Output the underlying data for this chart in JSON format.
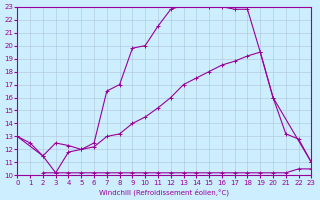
{
  "xlabel": "Windchill (Refroidissement éolien,°C)",
  "background_color": "#cceeff",
  "grid_color": "#b0c4d8",
  "line_color": "#990099",
  "xlim": [
    0,
    23
  ],
  "ylim": [
    10,
    23
  ],
  "xticks": [
    0,
    1,
    2,
    3,
    4,
    5,
    6,
    7,
    8,
    9,
    10,
    11,
    12,
    13,
    14,
    15,
    16,
    17,
    18,
    19,
    20,
    21,
    22,
    23
  ],
  "yticks": [
    10,
    11,
    12,
    13,
    14,
    15,
    16,
    17,
    18,
    19,
    20,
    21,
    22,
    23
  ],
  "series": [
    {
      "x": [
        0,
        1,
        2,
        3,
        4,
        5,
        6,
        7,
        8,
        9,
        10,
        11,
        12,
        13,
        14,
        15,
        16,
        17,
        18,
        19,
        20,
        23
      ],
      "y": [
        13,
        12.5,
        11.5,
        10.2,
        11.8,
        12.0,
        12.5,
        16.5,
        17.0,
        19.8,
        20.0,
        21.5,
        22.8,
        23.1,
        23.1,
        23.0,
        23.0,
        22.8,
        22.8,
        19.5,
        16.0,
        11.0
      ]
    },
    {
      "x": [
        0,
        2,
        3,
        4,
        5,
        6,
        7,
        8,
        9,
        10,
        11,
        12,
        13,
        14,
        15,
        16,
        17,
        18,
        19,
        20,
        21,
        22,
        23
      ],
      "y": [
        13,
        11.5,
        12.5,
        12.3,
        12.0,
        12.2,
        13.0,
        13.2,
        14.0,
        14.5,
        15.2,
        16.0,
        17.0,
        17.5,
        18.0,
        18.5,
        18.8,
        19.2,
        19.5,
        16.0,
        13.2,
        12.8,
        11.0
      ]
    },
    {
      "x": [
        2,
        3,
        4,
        5,
        6,
        7,
        8,
        9,
        10,
        11,
        12,
        13,
        14,
        15,
        16,
        17,
        18,
        19,
        20,
        21,
        22,
        23
      ],
      "y": [
        10.2,
        10.2,
        10.2,
        10.2,
        10.2,
        10.2,
        10.2,
        10.2,
        10.2,
        10.2,
        10.2,
        10.2,
        10.2,
        10.2,
        10.2,
        10.2,
        10.2,
        10.2,
        10.2,
        10.2,
        10.5,
        10.5
      ]
    }
  ]
}
